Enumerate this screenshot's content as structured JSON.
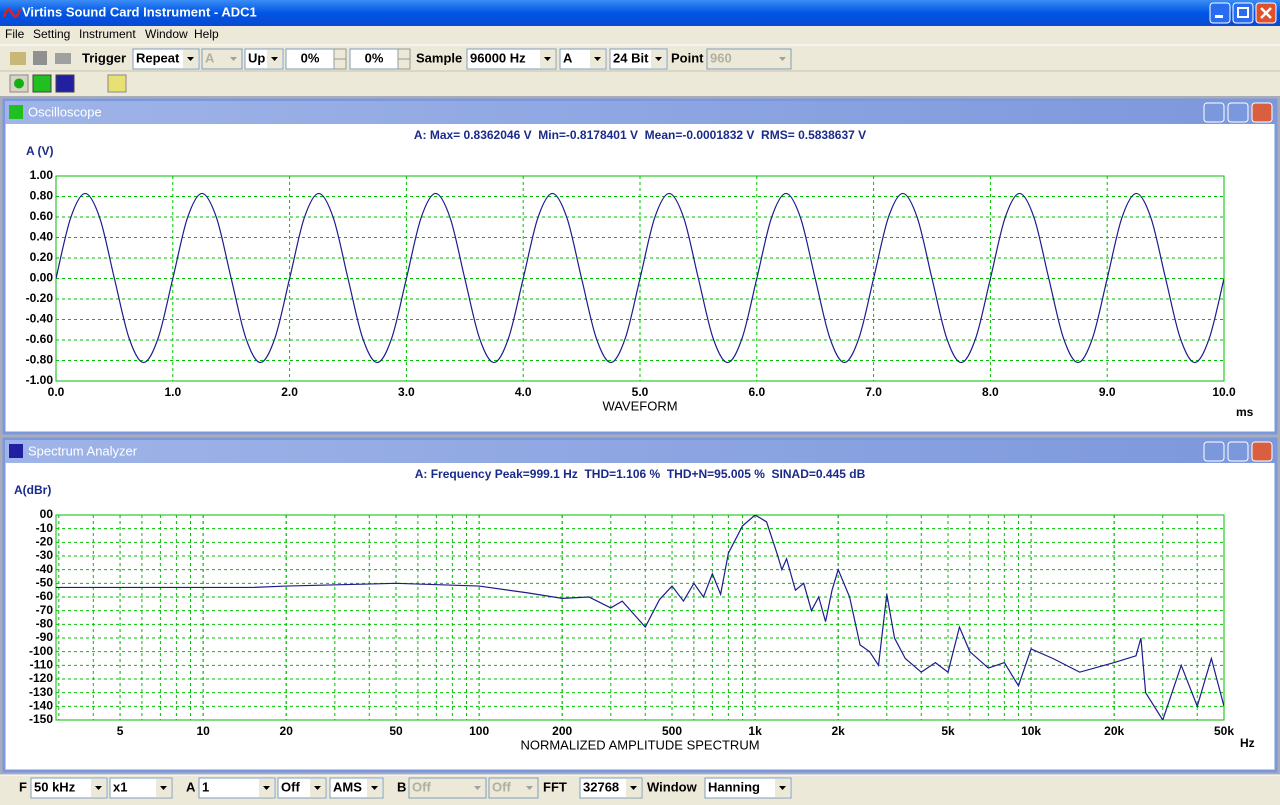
{
  "window": {
    "title": "Virtins Sound Card Instrument - ADC1"
  },
  "menu": [
    "File",
    "Setting",
    "Instrument",
    "Window",
    "Help"
  ],
  "toolbar": {
    "trigger_label": "Trigger",
    "trigger_mode": "Repeat",
    "trigger_channel": "A",
    "trigger_edge": "Up",
    "trigger_level": "0%",
    "trigger_delay": "0%",
    "sample_label": "Sample",
    "sample_rate": "96000 Hz",
    "channel": "A",
    "bit_depth": "24 Bit",
    "point_label": "Point",
    "points": "960"
  },
  "status_bar": {
    "f_label": "F",
    "frequency_range": "50 kHz",
    "multiplier": "x1",
    "a_label": "A",
    "a_value": "1",
    "a_mode": "Off",
    "a_function": "AMS",
    "b_label": "B",
    "b_value": "Off",
    "b_mode": "Off",
    "fft_label": "FFT",
    "fft_size": "32768",
    "window_label": "Window",
    "window_function": "Hanning"
  },
  "chart_data": [
    {
      "type": "line",
      "window_title": "Oscilloscope",
      "title": "A: Max= 0.8362046 V  Min=-0.8178401 V  Mean=-0.0001832 V  RMS= 0.5838637 V",
      "y_label": "A (V)",
      "x_label": "WAVEFORM",
      "x_unit": "ms",
      "color": "#1c1c8c",
      "grid": true,
      "smooth": true,
      "xlim": [
        0,
        10
      ],
      "ylim": [
        -1,
        1
      ],
      "xticks": [
        {
          "value": 0,
          "label": "0.0"
        },
        {
          "value": 1,
          "label": "1.0"
        },
        {
          "value": 2,
          "label": "2.0"
        },
        {
          "value": 3,
          "label": "3.0"
        },
        {
          "value": 4,
          "label": "4.0"
        },
        {
          "value": 5,
          "label": "5.0"
        },
        {
          "value": 6,
          "label": "6.0"
        },
        {
          "value": 7,
          "label": "7.0"
        },
        {
          "value": 8,
          "label": "8.0"
        },
        {
          "value": 9,
          "label": "9.0"
        },
        {
          "value": 10,
          "label": "10.0"
        }
      ],
      "yticks": [
        {
          "value": 1,
          "label": "1.00"
        },
        {
          "value": 0.8,
          "label": "0.80"
        },
        {
          "value": 0.6,
          "label": "0.60"
        },
        {
          "value": 0.4,
          "label": "0.40"
        },
        {
          "value": 0.2,
          "label": "0.20"
        },
        {
          "value": 0,
          "label": "0.00"
        },
        {
          "value": -0.2,
          "label": "-0.20"
        },
        {
          "value": -0.4,
          "label": "-0.40"
        },
        {
          "value": -0.6,
          "label": "-0.60"
        },
        {
          "value": -0.8,
          "label": "-0.80"
        },
        {
          "value": -1,
          "label": "-1.00"
        }
      ],
      "x": [
        0,
        0.125,
        0.25,
        0.375,
        0.5,
        0.625,
        0.75,
        0.875,
        1,
        1.125,
        1.25,
        1.375,
        1.5,
        1.625,
        1.75,
        1.875,
        2,
        2.125,
        2.25,
        2.375,
        2.5,
        2.625,
        2.75,
        2.875,
        3,
        3.125,
        3.25,
        3.375,
        3.5,
        3.625,
        3.75,
        3.875,
        4,
        4.125,
        4.25,
        4.375,
        4.5,
        4.625,
        4.75,
        4.875,
        5,
        5.125,
        5.25,
        5.375,
        5.5,
        5.625,
        5.75,
        5.875,
        6,
        6.125,
        6.25,
        6.375,
        6.5,
        6.625,
        6.75,
        6.875,
        7,
        7.125,
        7.25,
        7.375,
        7.5,
        7.625,
        7.75,
        7.875,
        8,
        8.125,
        8.25,
        8.375,
        8.5,
        8.625,
        8.75,
        8.875,
        9,
        9.125,
        9.25,
        9.375,
        9.5,
        9.625,
        9.75,
        9.875,
        10
      ],
      "values": [
        0,
        0.59,
        0.83,
        0.59,
        0,
        -0.58,
        -0.82,
        -0.58,
        0,
        0.59,
        0.83,
        0.59,
        0,
        -0.58,
        -0.82,
        -0.58,
        0,
        0.59,
        0.83,
        0.59,
        0,
        -0.58,
        -0.82,
        -0.58,
        0,
        0.59,
        0.83,
        0.59,
        0,
        -0.58,
        -0.82,
        -0.58,
        0,
        0.59,
        0.83,
        0.59,
        0,
        -0.58,
        -0.82,
        -0.58,
        0,
        0.59,
        0.83,
        0.59,
        0,
        -0.58,
        -0.82,
        -0.58,
        0,
        0.59,
        0.83,
        0.59,
        0,
        -0.58,
        -0.82,
        -0.58,
        0,
        0.59,
        0.83,
        0.59,
        0,
        -0.58,
        -0.82,
        -0.58,
        0,
        0.59,
        0.83,
        0.59,
        0,
        -0.58,
        -0.82,
        -0.58,
        0,
        0.59,
        0.83,
        0.59,
        0,
        -0.58,
        -0.82,
        -0.58,
        0
      ]
    },
    {
      "type": "line",
      "window_title": "Spectrum Analyzer",
      "title": "A: Frequency Peak=999.1 Hz  THD=1.106 %  THD+N=95.005 %  SINAD=0.445 dB",
      "y_label": "A(dBr)",
      "x_label": "NORMALIZED AMPLITUDE SPECTRUM",
      "x_unit": "Hz",
      "color": "#1c1c8c",
      "grid": true,
      "smooth": false,
      "x_log": true,
      "xlim": [
        2.93,
        50000
      ],
      "ylim": [
        -150,
        0
      ],
      "xticks": [
        5,
        10,
        20,
        50,
        100,
        200,
        500,
        {
          "value": 1000,
          "label": "1k"
        },
        {
          "value": 2000,
          "label": "2k"
        },
        {
          "value": 5000,
          "label": "5k"
        },
        {
          "value": 10000,
          "label": "10k"
        },
        {
          "value": 20000,
          "label": "20k"
        },
        {
          "value": 50000,
          "label": "50k"
        }
      ],
      "yticks": [
        {
          "value": 0,
          "label": "00"
        },
        -10,
        -20,
        -30,
        -40,
        -50,
        -60,
        -70,
        -80,
        -90,
        -100,
        -110,
        -120,
        -130,
        -140,
        -150
      ],
      "x": [
        2.93,
        10,
        15,
        20,
        50,
        100,
        150,
        200,
        250,
        300,
        330,
        400,
        450,
        500,
        550,
        600,
        650,
        700,
        750,
        800,
        900,
        1000,
        1100,
        1200,
        1250,
        1300,
        1400,
        1500,
        1600,
        1700,
        1800,
        1900,
        2000,
        2200,
        2400,
        2600,
        2800,
        3000,
        3200,
        3500,
        4000,
        4500,
        5000,
        5500,
        6000,
        7000,
        8000,
        9000,
        10000,
        12000,
        15000,
        20000,
        24000,
        25000,
        26000,
        30000,
        35000,
        40000,
        45000,
        50000
      ],
      "values": [
        -53,
        -53,
        -53,
        -52,
        -50,
        -52,
        -57,
        -61,
        -60,
        -68,
        -63,
        -82,
        -62,
        -52,
        -63,
        -50,
        -60,
        -43,
        -58,
        -28,
        -8,
        0,
        -5,
        -28,
        -40,
        -32,
        -55,
        -50,
        -70,
        -60,
        -78,
        -55,
        -40,
        -60,
        -95,
        -100,
        -110,
        -58,
        -90,
        -105,
        -115,
        -108,
        -115,
        -82,
        -100,
        -112,
        -108,
        -125,
        -98,
        -105,
        -115,
        -108,
        -103,
        -90,
        -130,
        -150,
        -110,
        -140,
        -105,
        -140
      ]
    }
  ]
}
